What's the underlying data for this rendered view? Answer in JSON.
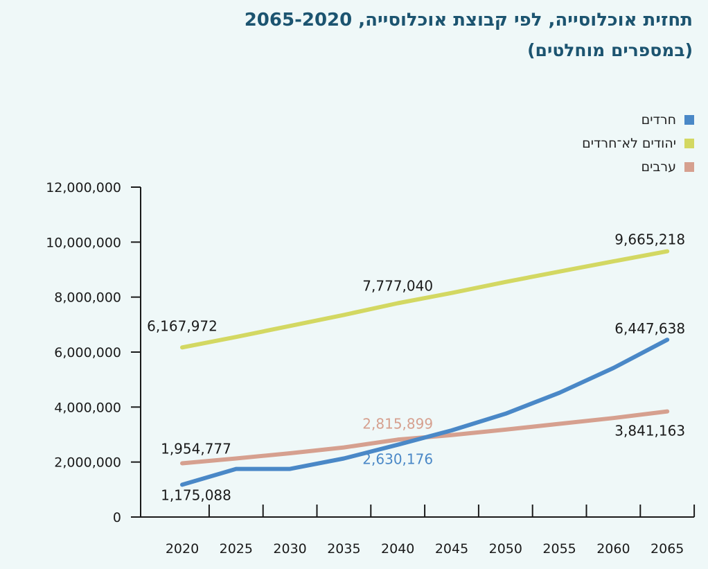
{
  "chart_data": {
    "type": "line",
    "title": "תחזית אוכלוסייה, לפי קבוצת אוכלוסייה, 2065-2020",
    "subtitle": "(במספרים מוחלטים)",
    "x": [
      2020,
      2025,
      2030,
      2035,
      2040,
      2045,
      2050,
      2055,
      2060,
      2065
    ],
    "x_tick_labels": [
      "2020",
      "2025",
      "2030",
      "2035",
      "2040",
      "2045",
      "2050",
      "2055",
      "2060",
      "2065"
    ],
    "ylim": [
      0,
      12000000
    ],
    "y_ticks": [
      0,
      2000000,
      4000000,
      6000000,
      8000000,
      10000000,
      12000000
    ],
    "y_tick_labels": [
      "0",
      "2,000,000",
      "4,000,000",
      "6,000,000",
      "8,000,000",
      "10,000,000",
      "12,000,000"
    ],
    "grid": false,
    "legend_position": "top-right",
    "series": [
      {
        "name": "חרדים",
        "color": "#4a88c7",
        "values": [
          1175088,
          1750000,
          1750000,
          2130000,
          2630176,
          3150000,
          3760000,
          4520000,
          5420000,
          6447638
        ]
      },
      {
        "name": "יהודים לא־חרדים",
        "color": "#d3d862",
        "values": [
          6167972,
          6550000,
          6950000,
          7350000,
          7777040,
          8150000,
          8550000,
          8930000,
          9300000,
          9665218
        ]
      },
      {
        "name": "ערבים",
        "color": "#d6a08f",
        "values": [
          1954777,
          2130000,
          2320000,
          2530000,
          2815899,
          2980000,
          3180000,
          3390000,
          3600000,
          3841163
        ]
      }
    ],
    "annotations": [
      {
        "text": "6,167,972",
        "series": 1,
        "x": 2020,
        "color": "#1a1a1a"
      },
      {
        "text": "7,777,040",
        "series": 1,
        "x": 2040,
        "color": "#1a1a1a"
      },
      {
        "text": "9,665,218",
        "series": 1,
        "x": 2065,
        "color": "#1a1a1a"
      },
      {
        "text": "6,447,638",
        "series": 0,
        "x": 2065,
        "color": "#1a1a1a"
      },
      {
        "text": "2,815,899",
        "series": 2,
        "x": 2040,
        "color": "#d6a08f"
      },
      {
        "text": "1,954,777",
        "series": 2,
        "x": 2020,
        "color": "#1a1a1a"
      },
      {
        "text": "3,841,163",
        "series": 2,
        "x": 2065,
        "color": "#1a1a1a"
      },
      {
        "text": "2,630,176",
        "series": 0,
        "x": 2040,
        "color": "#4a88c7"
      },
      {
        "text": "1,175,088",
        "series": 0,
        "x": 2020,
        "color": "#1a1a1a"
      }
    ]
  }
}
